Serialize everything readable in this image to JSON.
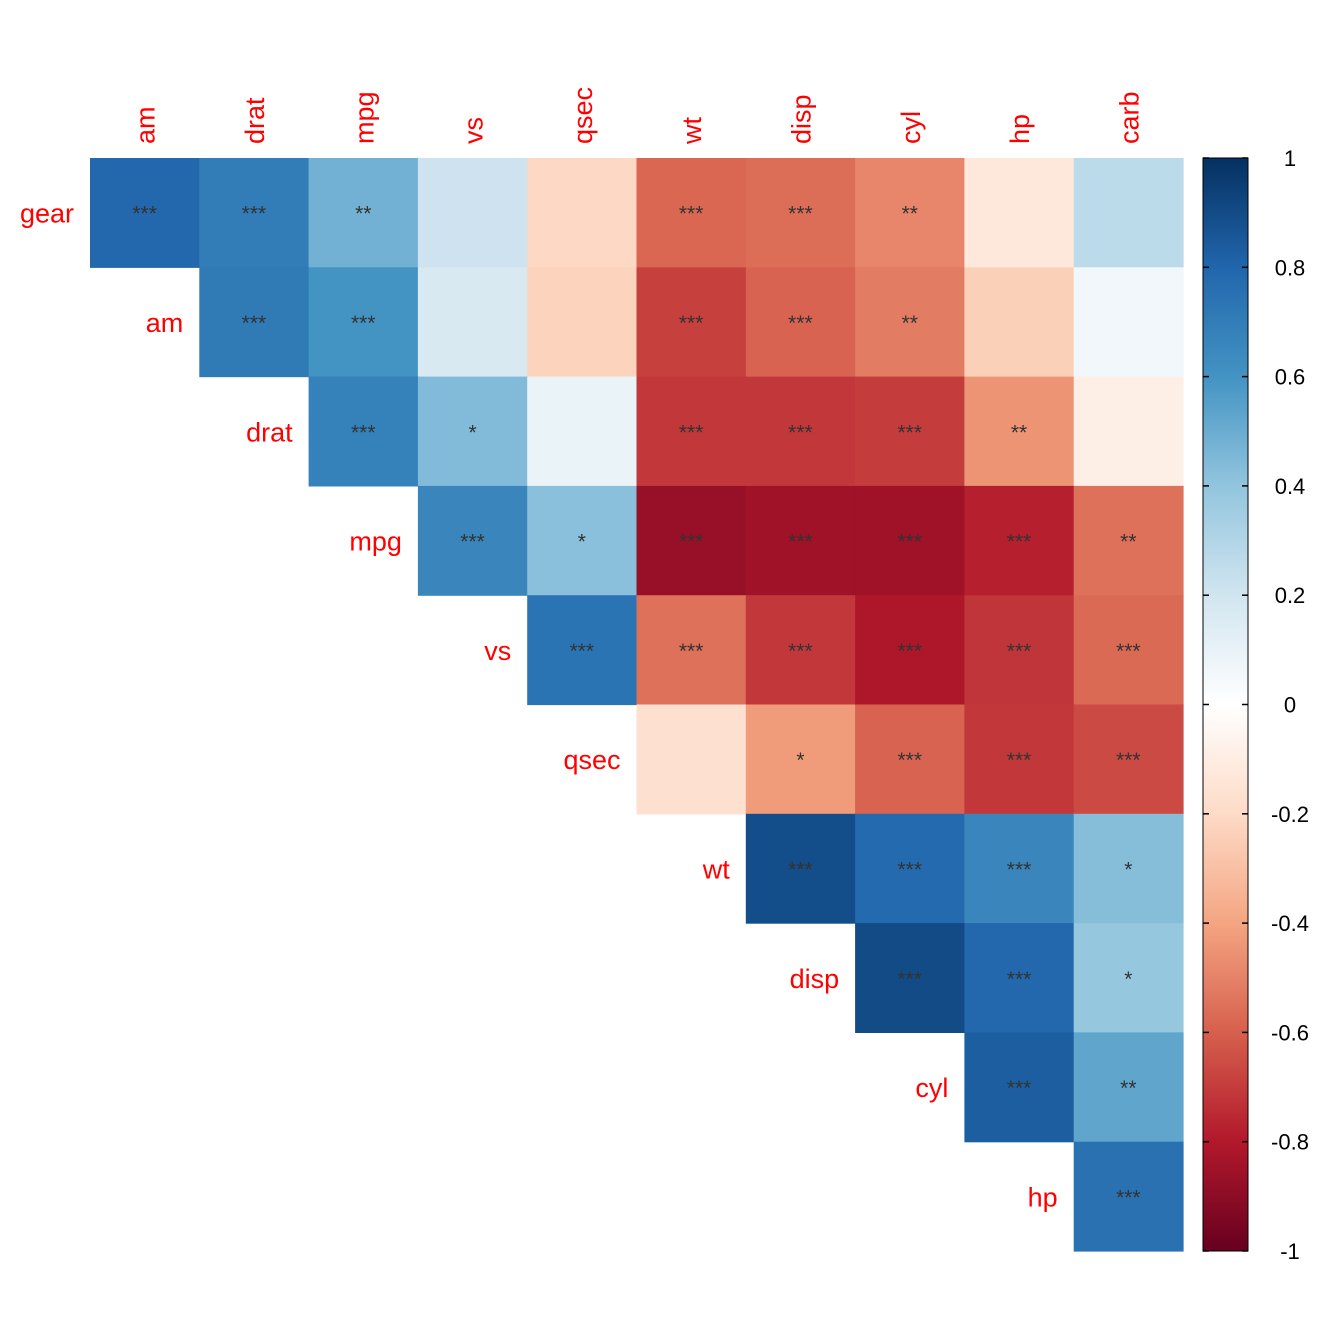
{
  "chart_data": {
    "type": "heatmap",
    "title": "",
    "layout": "upper-triangle",
    "variables": [
      "gear",
      "am",
      "drat",
      "mpg",
      "vs",
      "qsec",
      "wt",
      "disp",
      "cyl",
      "hp",
      "carb"
    ],
    "row_labels": [
      "gear",
      "am",
      "drat",
      "mpg",
      "vs",
      "qsec",
      "wt",
      "disp",
      "cyl",
      "hp"
    ],
    "col_labels": [
      "am",
      "drat",
      "mpg",
      "vs",
      "qsec",
      "wt",
      "disp",
      "cyl",
      "hp",
      "carb"
    ],
    "cells": [
      {
        "row": "gear",
        "col": "am",
        "value": 0.79,
        "sig": "***"
      },
      {
        "row": "gear",
        "col": "drat",
        "value": 0.7,
        "sig": "***"
      },
      {
        "row": "gear",
        "col": "mpg",
        "value": 0.48,
        "sig": "**"
      },
      {
        "row": "gear",
        "col": "vs",
        "value": 0.21,
        "sig": ""
      },
      {
        "row": "gear",
        "col": "qsec",
        "value": -0.21,
        "sig": ""
      },
      {
        "row": "gear",
        "col": "wt",
        "value": -0.58,
        "sig": "***"
      },
      {
        "row": "gear",
        "col": "disp",
        "value": -0.56,
        "sig": "***"
      },
      {
        "row": "gear",
        "col": "cyl",
        "value": -0.49,
        "sig": "**"
      },
      {
        "row": "gear",
        "col": "hp",
        "value": -0.13,
        "sig": ""
      },
      {
        "row": "gear",
        "col": "carb",
        "value": 0.27,
        "sig": ""
      },
      {
        "row": "am",
        "col": "drat",
        "value": 0.71,
        "sig": "***"
      },
      {
        "row": "am",
        "col": "mpg",
        "value": 0.6,
        "sig": "***"
      },
      {
        "row": "am",
        "col": "vs",
        "value": 0.17,
        "sig": ""
      },
      {
        "row": "am",
        "col": "qsec",
        "value": -0.23,
        "sig": ""
      },
      {
        "row": "am",
        "col": "wt",
        "value": -0.69,
        "sig": "***"
      },
      {
        "row": "am",
        "col": "disp",
        "value": -0.59,
        "sig": "***"
      },
      {
        "row": "am",
        "col": "cyl",
        "value": -0.52,
        "sig": "**"
      },
      {
        "row": "am",
        "col": "hp",
        "value": -0.24,
        "sig": ""
      },
      {
        "row": "am",
        "col": "carb",
        "value": 0.06,
        "sig": ""
      },
      {
        "row": "drat",
        "col": "mpg",
        "value": 0.68,
        "sig": "***"
      },
      {
        "row": "drat",
        "col": "vs",
        "value": 0.44,
        "sig": "*"
      },
      {
        "row": "drat",
        "col": "qsec",
        "value": 0.09,
        "sig": ""
      },
      {
        "row": "drat",
        "col": "wt",
        "value": -0.71,
        "sig": "***"
      },
      {
        "row": "drat",
        "col": "disp",
        "value": -0.71,
        "sig": "***"
      },
      {
        "row": "drat",
        "col": "cyl",
        "value": -0.7,
        "sig": "***"
      },
      {
        "row": "drat",
        "col": "hp",
        "value": -0.45,
        "sig": "**"
      },
      {
        "row": "drat",
        "col": "carb",
        "value": -0.09,
        "sig": ""
      },
      {
        "row": "mpg",
        "col": "vs",
        "value": 0.66,
        "sig": "***"
      },
      {
        "row": "mpg",
        "col": "qsec",
        "value": 0.42,
        "sig": "*"
      },
      {
        "row": "mpg",
        "col": "wt",
        "value": -0.87,
        "sig": "***"
      },
      {
        "row": "mpg",
        "col": "disp",
        "value": -0.85,
        "sig": "***"
      },
      {
        "row": "mpg",
        "col": "cyl",
        "value": -0.85,
        "sig": "***"
      },
      {
        "row": "mpg",
        "col": "hp",
        "value": -0.78,
        "sig": "***"
      },
      {
        "row": "mpg",
        "col": "carb",
        "value": -0.55,
        "sig": "**"
      },
      {
        "row": "vs",
        "col": "qsec",
        "value": 0.74,
        "sig": "***"
      },
      {
        "row": "vs",
        "col": "wt",
        "value": -0.55,
        "sig": "***"
      },
      {
        "row": "vs",
        "col": "disp",
        "value": -0.71,
        "sig": "***"
      },
      {
        "row": "vs",
        "col": "cyl",
        "value": -0.81,
        "sig": "***"
      },
      {
        "row": "vs",
        "col": "hp",
        "value": -0.72,
        "sig": "***"
      },
      {
        "row": "vs",
        "col": "carb",
        "value": -0.57,
        "sig": "***"
      },
      {
        "row": "qsec",
        "col": "wt",
        "value": -0.17,
        "sig": ""
      },
      {
        "row": "qsec",
        "col": "disp",
        "value": -0.43,
        "sig": "*"
      },
      {
        "row": "qsec",
        "col": "cyl",
        "value": -0.59,
        "sig": "***"
      },
      {
        "row": "qsec",
        "col": "hp",
        "value": -0.71,
        "sig": "***"
      },
      {
        "row": "qsec",
        "col": "carb",
        "value": -0.66,
        "sig": "***"
      },
      {
        "row": "wt",
        "col": "disp",
        "value": 0.89,
        "sig": "***"
      },
      {
        "row": "wt",
        "col": "cyl",
        "value": 0.78,
        "sig": "***"
      },
      {
        "row": "wt",
        "col": "hp",
        "value": 0.66,
        "sig": "***"
      },
      {
        "row": "wt",
        "col": "carb",
        "value": 0.43,
        "sig": "*"
      },
      {
        "row": "disp",
        "col": "cyl",
        "value": 0.9,
        "sig": "***"
      },
      {
        "row": "disp",
        "col": "hp",
        "value": 0.79,
        "sig": "***"
      },
      {
        "row": "disp",
        "col": "carb",
        "value": 0.39,
        "sig": "*"
      },
      {
        "row": "cyl",
        "col": "hp",
        "value": 0.83,
        "sig": "***"
      },
      {
        "row": "cyl",
        "col": "carb",
        "value": 0.53,
        "sig": "**"
      },
      {
        "row": "hp",
        "col": "carb",
        "value": 0.75,
        "sig": "***"
      }
    ],
    "color_scale": {
      "min": -1,
      "max": 1,
      "stops": [
        "#67001F",
        "#B2182B",
        "#D6604D",
        "#F4A582",
        "#FDDBC7",
        "#FFFFFF",
        "#D1E5F0",
        "#92C5DE",
        "#4393C3",
        "#2166AC",
        "#053061"
      ]
    },
    "legend": {
      "position": "right",
      "ticks": [
        "1",
        "0.8",
        "0.6",
        "0.4",
        "0.2",
        "0",
        "-0.2",
        "-0.4",
        "-0.6",
        "-0.8",
        "-1"
      ]
    },
    "label_color": "#FF0000",
    "sig_color": "#333333"
  }
}
